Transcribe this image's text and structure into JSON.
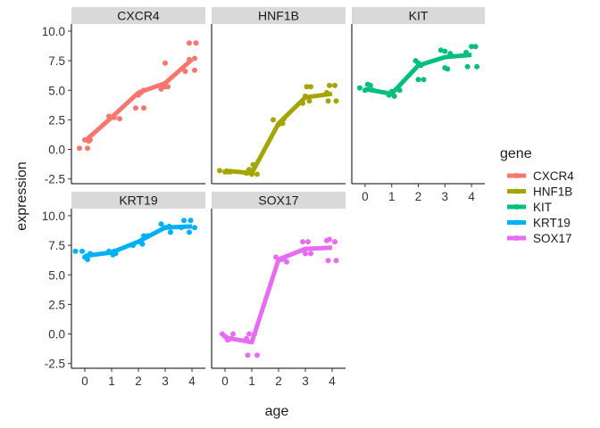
{
  "chart_data": {
    "type": "scatter",
    "facet_by": "gene",
    "xlabel": "age",
    "ylabel": "expression",
    "xlim": [
      -0.5,
      4.5
    ],
    "ylim": [
      -2.9,
      10.6
    ],
    "x_ticks": [
      0,
      1,
      2,
      3,
      4
    ],
    "y_ticks": [
      -2.5,
      0.0,
      2.5,
      5.0,
      7.5,
      10.0
    ],
    "y_tick_labels": [
      "-2.5",
      "0.0",
      "2.5",
      "5.0",
      "7.5",
      "10.0"
    ],
    "legend": {
      "title": "gene",
      "position": "right"
    },
    "grid": false,
    "series": [
      {
        "name": "CXCR4",
        "color": "#F8766D",
        "points": [
          [
            -0.2,
            0.1
          ],
          [
            0.1,
            0.1
          ],
          [
            0.0,
            0.8
          ],
          [
            0.15,
            0.7
          ],
          [
            0.2,
            0.8
          ],
          [
            0.9,
            2.8
          ],
          [
            1.1,
            2.7
          ],
          [
            1.3,
            2.6
          ],
          [
            0.95,
            2.7
          ],
          [
            1.9,
            3.5
          ],
          [
            2.2,
            3.5
          ],
          [
            2.0,
            4.6
          ],
          [
            2.1,
            4.8
          ],
          [
            2.2,
            5.0
          ],
          [
            2.85,
            5.1
          ],
          [
            3.0,
            5.3
          ],
          [
            3.1,
            5.3
          ],
          [
            3.0,
            7.3
          ],
          [
            3.75,
            6.6
          ],
          [
            3.9,
            7.6
          ],
          [
            4.1,
            7.7
          ],
          [
            3.9,
            9.0
          ],
          [
            4.15,
            9.0
          ],
          [
            4.1,
            6.7
          ]
        ],
        "trend": [
          [
            0,
            0.7
          ],
          [
            1,
            2.7
          ],
          [
            2,
            4.8
          ],
          [
            3,
            5.6
          ],
          [
            4,
            7.6
          ]
        ]
      },
      {
        "name": "HNF1B",
        "color": "#A3A500",
        "points": [
          [
            -0.2,
            -1.8
          ],
          [
            0.0,
            -1.9
          ],
          [
            0.1,
            -1.9
          ],
          [
            0.2,
            -1.9
          ],
          [
            0.8,
            -2.0
          ],
          [
            0.9,
            -1.7
          ],
          [
            1.0,
            -2.1
          ],
          [
            1.2,
            -2.1
          ],
          [
            1.05,
            -1.3
          ],
          [
            1.8,
            2.5
          ],
          [
            2.0,
            2.1
          ],
          [
            2.15,
            2.2
          ],
          [
            2.2,
            2.6
          ],
          [
            2.9,
            3.9
          ],
          [
            3.0,
            4.5
          ],
          [
            3.05,
            5.3
          ],
          [
            3.2,
            5.3
          ],
          [
            3.15,
            4.1
          ],
          [
            3.8,
            4.8
          ],
          [
            3.9,
            5.4
          ],
          [
            4.1,
            5.4
          ],
          [
            3.85,
            4.1
          ],
          [
            4.15,
            4.1
          ]
        ],
        "trend": [
          [
            0,
            -1.8
          ],
          [
            1,
            -2.0
          ],
          [
            2,
            2.2
          ],
          [
            3,
            4.4
          ],
          [
            4,
            4.7
          ]
        ]
      },
      {
        "name": "KIT",
        "color": "#00BF7D",
        "points": [
          [
            -0.2,
            5.2
          ],
          [
            0.0,
            5.0
          ],
          [
            0.1,
            5.5
          ],
          [
            0.2,
            5.4
          ],
          [
            0.3,
            5.0
          ],
          [
            0.9,
            4.6
          ],
          [
            1.0,
            4.9
          ],
          [
            1.1,
            4.5
          ],
          [
            1.3,
            5.0
          ],
          [
            1.9,
            7.5
          ],
          [
            2.0,
            7.3
          ],
          [
            2.1,
            7.1
          ],
          [
            2.0,
            5.9
          ],
          [
            2.2,
            5.9
          ],
          [
            2.85,
            8.4
          ],
          [
            3.0,
            8.3
          ],
          [
            3.2,
            8.1
          ],
          [
            3.0,
            6.9
          ],
          [
            3.1,
            6.8
          ],
          [
            3.8,
            8.2
          ],
          [
            4.0,
            8.7
          ],
          [
            4.15,
            8.7
          ],
          [
            3.85,
            7.0
          ],
          [
            4.2,
            7.0
          ]
        ],
        "trend": [
          [
            0,
            5.1
          ],
          [
            1,
            4.7
          ],
          [
            2,
            7.1
          ],
          [
            3,
            7.8
          ],
          [
            4,
            8.0
          ]
        ]
      },
      {
        "name": "KRT19",
        "color": "#00B0F6",
        "points": [
          [
            -0.35,
            7.0
          ],
          [
            -0.1,
            7.0
          ],
          [
            0.0,
            6.5
          ],
          [
            0.1,
            6.3
          ],
          [
            0.2,
            6.8
          ],
          [
            0.9,
            7.0
          ],
          [
            1.1,
            7.0
          ],
          [
            1.05,
            6.7
          ],
          [
            1.15,
            6.8
          ],
          [
            1.8,
            7.5
          ],
          [
            2.05,
            7.8
          ],
          [
            2.15,
            7.6
          ],
          [
            2.2,
            8.3
          ],
          [
            2.35,
            8.3
          ],
          [
            2.85,
            9.3
          ],
          [
            3.0,
            9.0
          ],
          [
            3.15,
            9.1
          ],
          [
            3.2,
            8.6
          ],
          [
            3.6,
            9.0
          ],
          [
            3.7,
            9.6
          ],
          [
            3.95,
            9.6
          ],
          [
            4.1,
            9.0
          ],
          [
            3.9,
            8.6
          ]
        ],
        "trend": [
          [
            0,
            6.6
          ],
          [
            1,
            6.9
          ],
          [
            2,
            7.8
          ],
          [
            3,
            9.0
          ],
          [
            4,
            9.1
          ]
        ]
      },
      {
        "name": "SOX17",
        "color": "#E76BF3",
        "points": [
          [
            -0.1,
            0.0
          ],
          [
            0.0,
            -0.2
          ],
          [
            0.1,
            -0.5
          ],
          [
            0.2,
            -0.4
          ],
          [
            0.3,
            0.0
          ],
          [
            0.8,
            -0.4
          ],
          [
            0.9,
            0.0
          ],
          [
            1.1,
            0.0
          ],
          [
            1.2,
            -1.8
          ],
          [
            0.85,
            -1.8
          ],
          [
            1.9,
            6.5
          ],
          [
            2.0,
            6.3
          ],
          [
            2.1,
            6.3
          ],
          [
            2.2,
            6.4
          ],
          [
            2.3,
            6.1
          ],
          [
            2.9,
            7.8
          ],
          [
            3.1,
            7.8
          ],
          [
            3.0,
            6.8
          ],
          [
            3.2,
            6.8
          ],
          [
            3.8,
            7.9
          ],
          [
            3.9,
            8.0
          ],
          [
            4.1,
            7.8
          ],
          [
            3.85,
            6.2
          ],
          [
            4.15,
            6.2
          ]
        ],
        "trend": [
          [
            0,
            -0.3
          ],
          [
            1,
            -0.7
          ],
          [
            2,
            6.3
          ],
          [
            3,
            7.2
          ],
          [
            4,
            7.3
          ]
        ]
      }
    ]
  }
}
